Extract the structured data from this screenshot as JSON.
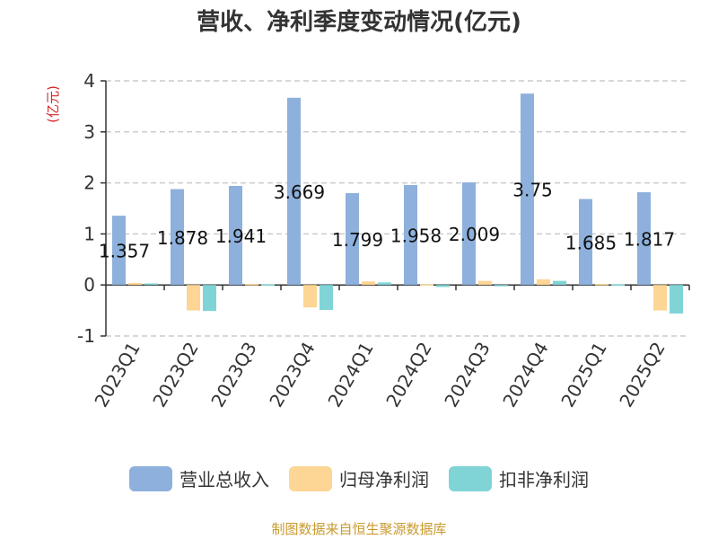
{
  "title": "营收、净利季度变动情况(亿元)",
  "source": "制图数据来自恒生聚源数据库",
  "colors": {
    "revenue": "#8eb0dc",
    "net_profit": "#fdd594",
    "deducted_profit": "#80d4d6",
    "ylabel": "#d62728",
    "grid": "#cccccc",
    "axis": "#333333"
  },
  "chart_data": {
    "type": "bar",
    "title": "营收、净利季度变动情况(亿元)",
    "ylabel": "(亿元)",
    "xlabel": "",
    "ylim": [
      -1,
      4
    ],
    "yticks": [
      -1,
      0,
      1,
      2,
      3,
      4
    ],
    "grid": true,
    "legend_position": "bottom",
    "categories": [
      "2023Q1",
      "2023Q2",
      "2023Q3",
      "2023Q4",
      "2024Q1",
      "2024Q2",
      "2024Q3",
      "2024Q4",
      "2025Q1",
      "2025Q2"
    ],
    "series": [
      {
        "name": "营业总收入",
        "key": "revenue",
        "values": [
          1.357,
          1.878,
          1.941,
          3.669,
          1.799,
          1.958,
          2.009,
          3.75,
          1.685,
          1.817
        ],
        "labels": [
          "1.357",
          "1.878",
          "1.941",
          "3.669",
          "1.799",
          "1.958",
          "2.009",
          "3.75",
          "1.685",
          "1.817"
        ]
      },
      {
        "name": "归母净利润",
        "key": "net_profit",
        "values": [
          0.04,
          -0.5,
          0.02,
          -0.44,
          0.07,
          0.01,
          0.08,
          0.11,
          0.02,
          -0.5
        ]
      },
      {
        "name": "扣非净利润",
        "key": "deducted_profit",
        "values": [
          0.03,
          -0.51,
          0.01,
          -0.49,
          0.05,
          -0.04,
          0.0,
          0.08,
          0.01,
          -0.56
        ]
      }
    ]
  }
}
